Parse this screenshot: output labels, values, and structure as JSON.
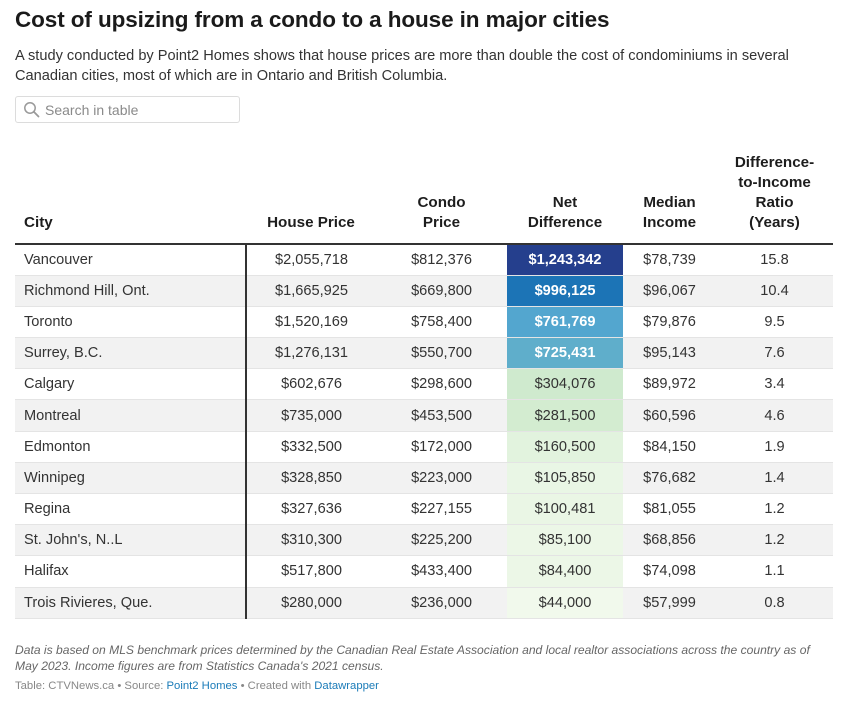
{
  "header": {
    "title": "Cost of upsizing from a condo to a house in major cities",
    "description": "A study conducted by Point2 Homes shows that house prices are more than double the cost of condominiums in several Canadian cities, most of which are in Ontario and British Columbia."
  },
  "search": {
    "placeholder": "Search in table",
    "value": ""
  },
  "icons": {
    "search": "search-icon"
  },
  "chart_data": {
    "type": "table",
    "columns": [
      "City",
      "House Price",
      "Condo Price",
      "Net Difference",
      "Median Income",
      "Difference-to-Income Ratio (Years)"
    ],
    "rows": [
      {
        "city": "Vancouver",
        "house_price": "$2,055,718",
        "condo_price": "$812,376",
        "net_difference": "$1,243,342",
        "net_value": 1243342,
        "median_income": "$78,739",
        "ratio": "15.8"
      },
      {
        "city": "Richmond Hill, Ont.",
        "house_price": "$1,665,925",
        "condo_price": "$669,800",
        "net_difference": "$996,125",
        "net_value": 996125,
        "median_income": "$96,067",
        "ratio": "10.4"
      },
      {
        "city": "Toronto",
        "house_price": "$1,520,169",
        "condo_price": "$758,400",
        "net_difference": "$761,769",
        "net_value": 761769,
        "median_income": "$79,876",
        "ratio": "9.5"
      },
      {
        "city": "Surrey, B.C.",
        "house_price": "$1,276,131",
        "condo_price": "$550,700",
        "net_difference": "$725,431",
        "net_value": 725431,
        "median_income": "$95,143",
        "ratio": "7.6"
      },
      {
        "city": "Calgary",
        "house_price": "$602,676",
        "condo_price": "$298,600",
        "net_difference": "$304,076",
        "net_value": 304076,
        "median_income": "$89,972",
        "ratio": "3.4"
      },
      {
        "city": "Montreal",
        "house_price": "$735,000",
        "condo_price": "$453,500",
        "net_difference": "$281,500",
        "net_value": 281500,
        "median_income": "$60,596",
        "ratio": "4.6"
      },
      {
        "city": "Edmonton",
        "house_price": "$332,500",
        "condo_price": "$172,000",
        "net_difference": "$160,500",
        "net_value": 160500,
        "median_income": "$84,150",
        "ratio": "1.9"
      },
      {
        "city": "Winnipeg",
        "house_price": "$328,850",
        "condo_price": "$223,000",
        "net_difference": "$105,850",
        "net_value": 105850,
        "median_income": "$76,682",
        "ratio": "1.4"
      },
      {
        "city": "Regina",
        "house_price": "$327,636",
        "condo_price": "$227,155",
        "net_difference": "$100,481",
        "net_value": 100481,
        "median_income": "$81,055",
        "ratio": "1.2"
      },
      {
        "city": "St. John's, N..L",
        "house_price": "$310,300",
        "condo_price": "$225,200",
        "net_difference": "$85,100",
        "net_value": 85100,
        "median_income": "$68,856",
        "ratio": "1.2"
      },
      {
        "city": "Halifax",
        "house_price": "$517,800",
        "condo_price": "$433,400",
        "net_difference": "$84,400",
        "net_value": 84400,
        "median_income": "$74,098",
        "ratio": "1.1"
      },
      {
        "city": "Trois Rivieres, Que.",
        "house_price": "$280,000",
        "condo_price": "$236,000",
        "net_difference": "$44,000",
        "net_value": 44000,
        "median_income": "$57,999",
        "ratio": "0.8"
      }
    ],
    "heatmap_column": "Net Difference",
    "colors": {
      "scale": [
        "#f1f9ec",
        "#d3ecd0",
        "#a6dab9",
        "#52a6cf",
        "#1a72b5",
        "#253f8d"
      ],
      "text_dark": "#333333",
      "text_light": "#ffffff"
    }
  },
  "footer": {
    "notes": "Data is based on MLS benchmark prices determined by the Canadian Real Estate Association and local realtor associations across the country as of May 2023. Income figures are from Statistics Canada's 2021 census.",
    "credit_prefix": "Table: CTVNews.ca • Source: ",
    "source_link": "Point2 Homes",
    "credit_middle": " • Created with ",
    "tool_link": "Datawrapper"
  }
}
